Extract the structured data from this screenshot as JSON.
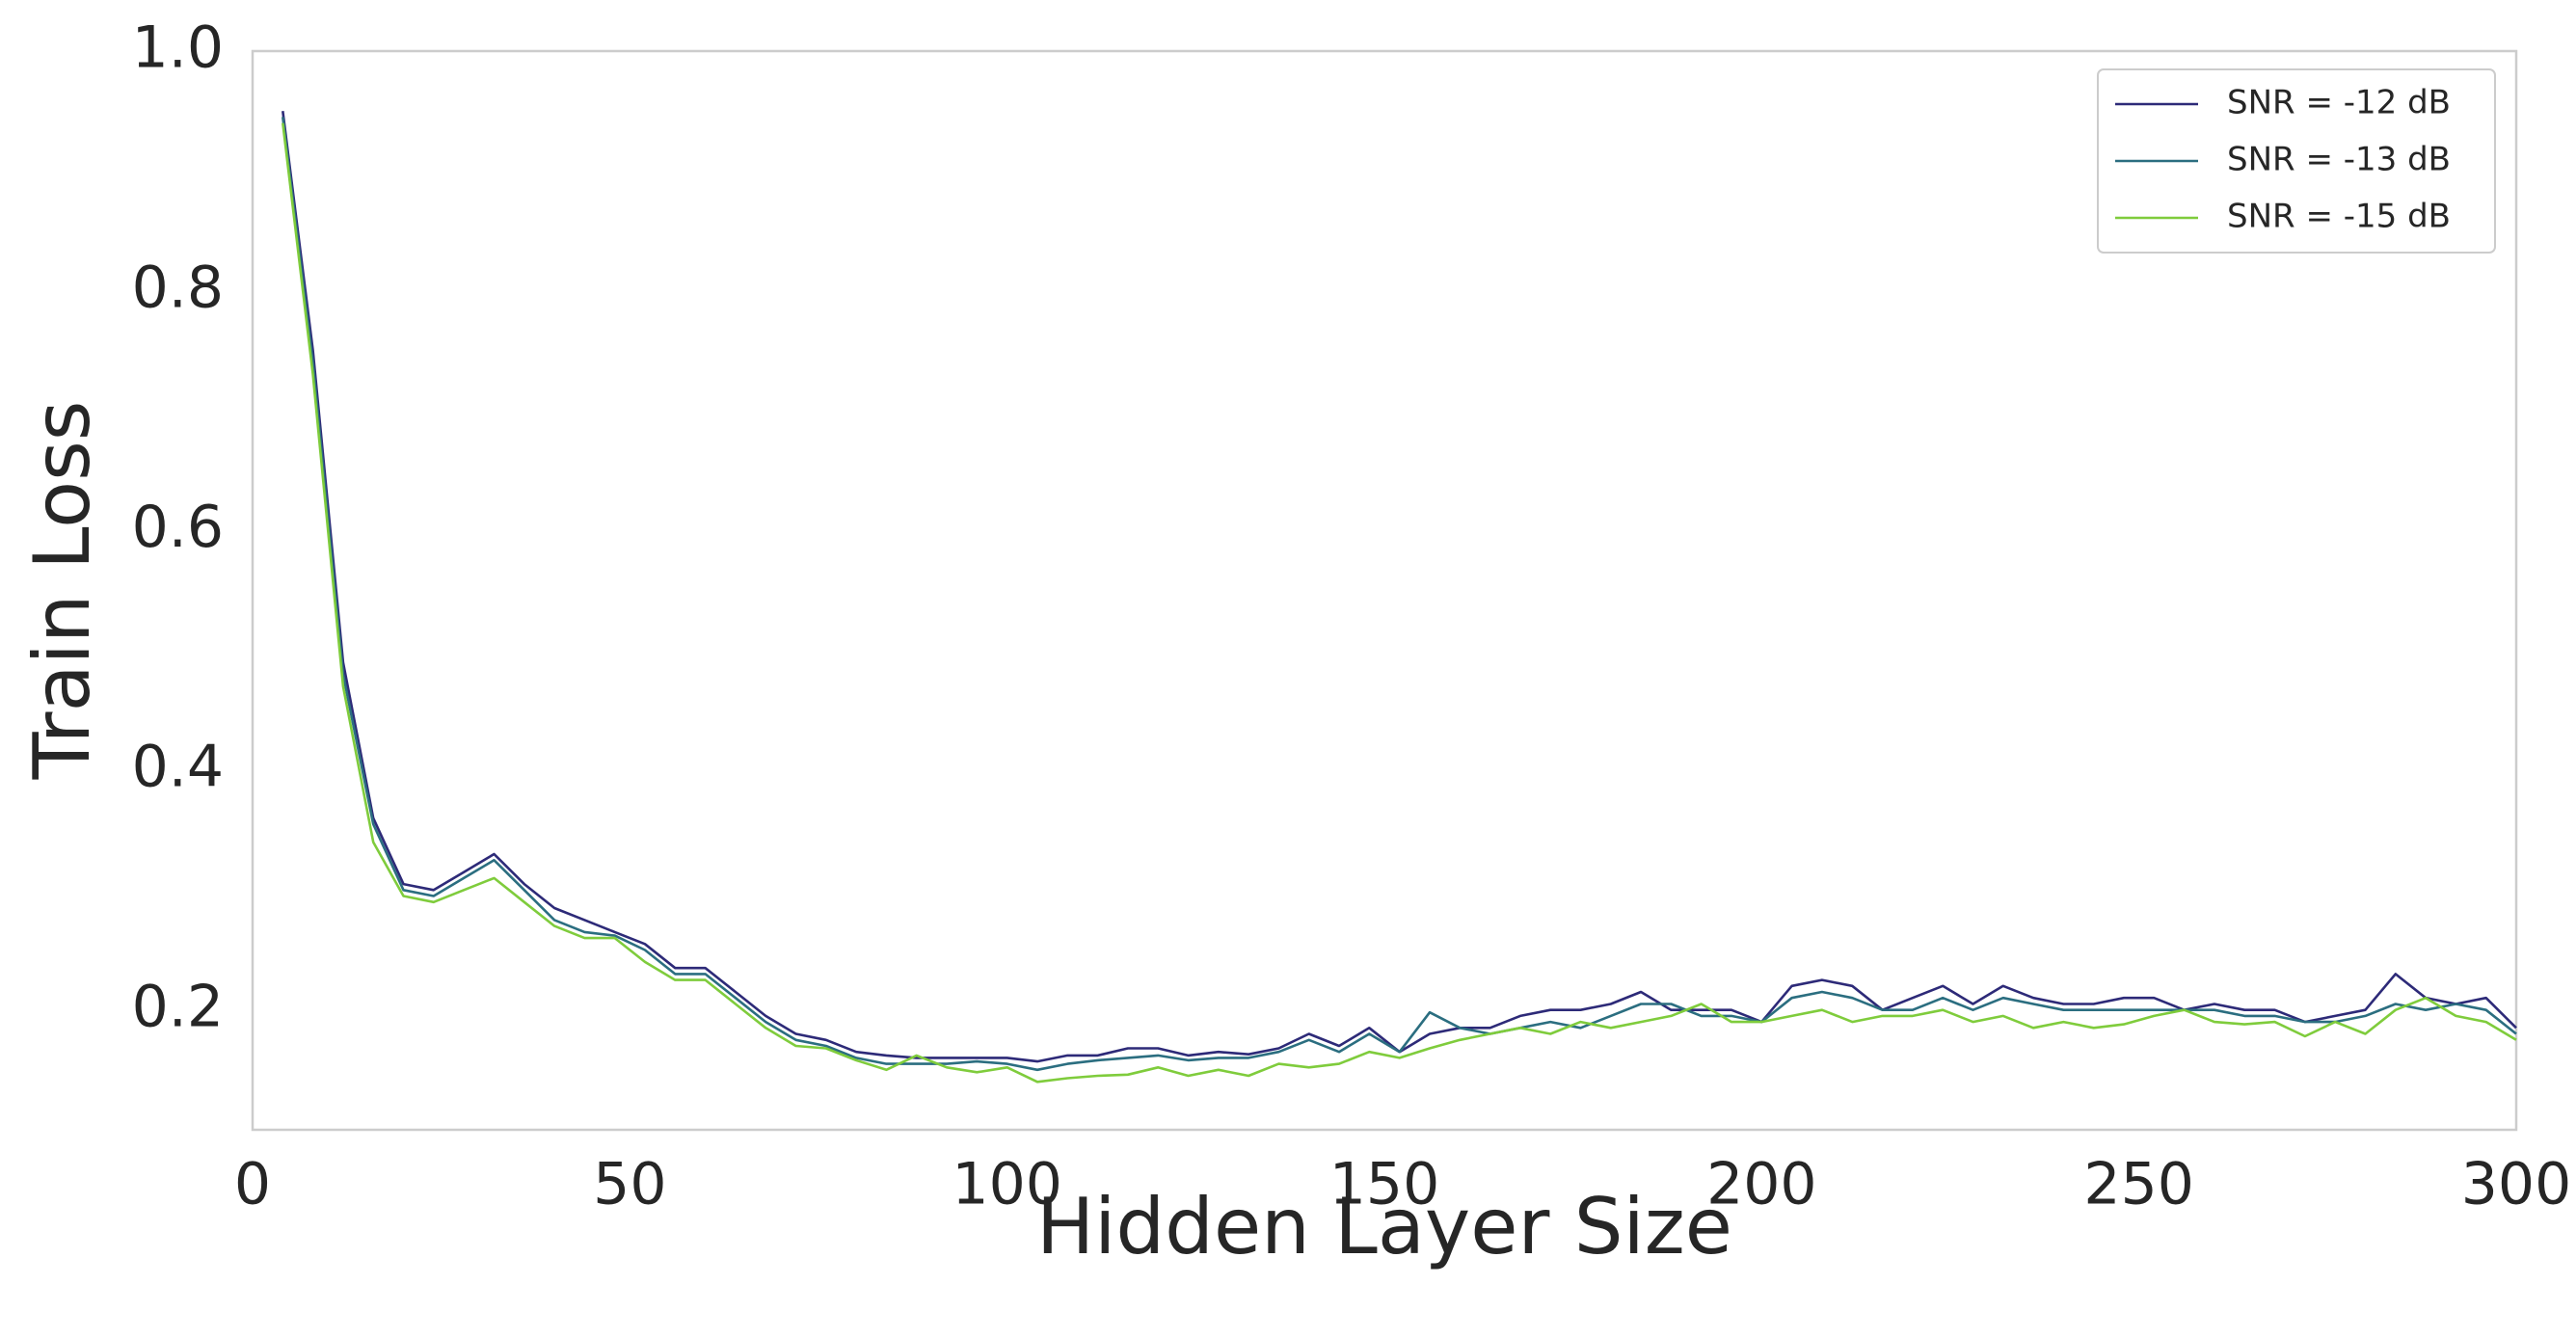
{
  "chart_data": {
    "type": "line",
    "xlabel": "Hidden Layer Size",
    "ylabel": "Train Loss",
    "x": [
      4,
      8,
      12,
      16,
      20,
      24,
      28,
      32,
      36,
      40,
      44,
      48,
      52,
      56,
      60,
      64,
      68,
      72,
      76,
      80,
      84,
      88,
      92,
      96,
      100,
      104,
      108,
      112,
      116,
      120,
      124,
      128,
      132,
      136,
      140,
      144,
      148,
      152,
      156,
      160,
      164,
      168,
      172,
      176,
      180,
      184,
      188,
      192,
      196,
      200,
      204,
      208,
      212,
      216,
      220,
      224,
      228,
      232,
      236,
      240,
      244,
      248,
      252,
      256,
      260,
      264,
      268,
      272,
      276,
      280,
      284,
      288,
      292,
      296,
      300
    ],
    "series": [
      {
        "name": "SNR = -12 dB",
        "color": "#2d2a78",
        "values": [
          0.95,
          0.75,
          0.49,
          0.36,
          0.305,
          0.3,
          0.315,
          0.33,
          0.305,
          0.285,
          0.275,
          0.265,
          0.255,
          0.235,
          0.235,
          0.215,
          0.195,
          0.18,
          0.175,
          0.165,
          0.162,
          0.16,
          0.16,
          0.16,
          0.16,
          0.157,
          0.162,
          0.162,
          0.168,
          0.168,
          0.162,
          0.165,
          0.163,
          0.168,
          0.18,
          0.17,
          0.185,
          0.165,
          0.18,
          0.185,
          0.185,
          0.195,
          0.2,
          0.2,
          0.205,
          0.215,
          0.2,
          0.2,
          0.2,
          0.19,
          0.22,
          0.225,
          0.22,
          0.2,
          0.21,
          0.22,
          0.205,
          0.22,
          0.21,
          0.205,
          0.205,
          0.21,
          0.21,
          0.2,
          0.205,
          0.2,
          0.2,
          0.19,
          0.195,
          0.2,
          0.23,
          0.21,
          0.205,
          0.21,
          0.185
        ]
      },
      {
        "name": "SNR = -13 dB",
        "color": "#2b6e80",
        "values": [
          0.945,
          0.74,
          0.48,
          0.355,
          0.3,
          0.295,
          0.31,
          0.325,
          0.3,
          0.275,
          0.265,
          0.262,
          0.25,
          0.23,
          0.23,
          0.21,
          0.19,
          0.175,
          0.17,
          0.16,
          0.155,
          0.155,
          0.155,
          0.157,
          0.155,
          0.15,
          0.155,
          0.158,
          0.16,
          0.162,
          0.158,
          0.16,
          0.16,
          0.165,
          0.175,
          0.165,
          0.18,
          0.165,
          0.198,
          0.185,
          0.18,
          0.185,
          0.19,
          0.185,
          0.195,
          0.205,
          0.205,
          0.195,
          0.195,
          0.19,
          0.21,
          0.215,
          0.21,
          0.2,
          0.2,
          0.21,
          0.2,
          0.21,
          0.205,
          0.2,
          0.2,
          0.2,
          0.2,
          0.2,
          0.2,
          0.195,
          0.195,
          0.19,
          0.19,
          0.195,
          0.205,
          0.2,
          0.205,
          0.2,
          0.18
        ]
      },
      {
        "name": "SNR = -15 dB",
        "color": "#7fcc3c",
        "values": [
          0.94,
          0.73,
          0.47,
          0.34,
          0.295,
          0.29,
          0.3,
          0.31,
          0.29,
          0.27,
          0.26,
          0.26,
          0.24,
          0.225,
          0.225,
          0.205,
          0.185,
          0.17,
          0.168,
          0.158,
          0.15,
          0.162,
          0.152,
          0.148,
          0.152,
          0.14,
          0.143,
          0.145,
          0.146,
          0.152,
          0.145,
          0.15,
          0.145,
          0.155,
          0.152,
          0.155,
          0.165,
          0.16,
          0.168,
          0.175,
          0.18,
          0.185,
          0.18,
          0.19,
          0.185,
          0.19,
          0.195,
          0.205,
          0.19,
          0.19,
          0.195,
          0.2,
          0.19,
          0.195,
          0.195,
          0.2,
          0.19,
          0.195,
          0.185,
          0.19,
          0.185,
          0.188,
          0.195,
          0.2,
          0.19,
          0.188,
          0.19,
          0.178,
          0.19,
          0.18,
          0.2,
          0.21,
          0.195,
          0.19,
          0.175
        ]
      }
    ],
    "xlim": [
      0,
      300
    ],
    "xticks": [
      0,
      50,
      100,
      150,
      200,
      250,
      300
    ],
    "ylim": [
      0.1,
      1.0
    ],
    "yticks": [
      0.2,
      0.4,
      0.6,
      0.8,
      {
        "value": 1.0,
        "label": "1.0"
      }
    ],
    "grid": false,
    "legend": "upper right"
  }
}
